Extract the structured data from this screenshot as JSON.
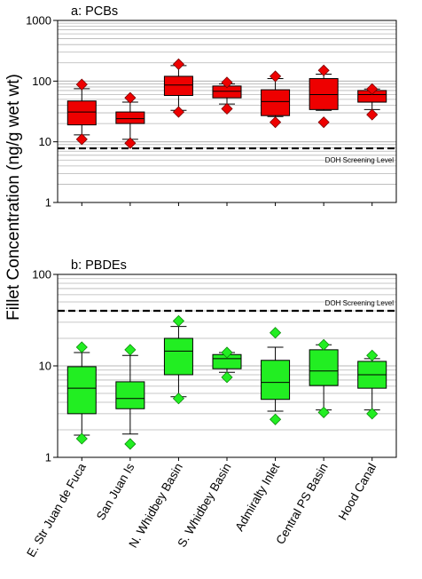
{
  "ylabel": "Fillet Concentration (ng/g wet wt)",
  "categories": [
    "E. Str Juan de Fuca",
    "San Juan Is",
    "N. Whidbey Basin",
    "S. Whidbey Basin",
    "Admiralty Inlet",
    "Central PS Basin",
    "Hood Canal"
  ],
  "chart_data": [
    {
      "type": "box",
      "title": "a: PCBs",
      "yscale": "log",
      "ylim": [
        1,
        1000
      ],
      "yticks": [
        "1",
        "10",
        "100",
        "1000"
      ],
      "color": "#ee0000",
      "reference_line": {
        "label": "DOH Screening Level",
        "value": 7.8
      },
      "boxes": [
        {
          "category": "E. Str Juan de Fuca",
          "min": 11,
          "whisker_low": 13,
          "q1": 19,
          "median": 31,
          "q3": 47,
          "whisker_high": 75,
          "max": 88
        },
        {
          "category": "San Juan Is",
          "min": 9.5,
          "whisker_low": 11,
          "q1": 20,
          "median": 24,
          "q3": 31,
          "whisker_high": 45,
          "max": 53
        },
        {
          "category": "N. Whidbey Basin",
          "min": 31,
          "whisker_low": 33,
          "q1": 58,
          "median": 86,
          "q3": 120,
          "whisker_high": 180,
          "max": 190
        },
        {
          "category": "S. Whidbey Basin",
          "min": 35,
          "whisker_low": 42,
          "q1": 53,
          "median": 68,
          "q3": 83,
          "whisker_high": 90,
          "max": 95
        },
        {
          "category": "Admiralty Inlet",
          "min": 21,
          "whisker_low": 26,
          "q1": 27,
          "median": 46,
          "q3": 72,
          "whisker_high": 110,
          "max": 120
        },
        {
          "category": "Central PS Basin",
          "min": 21,
          "whisker_low": 33,
          "q1": 34,
          "median": 60,
          "q3": 110,
          "whisker_high": 130,
          "max": 150
        },
        {
          "category": "Hood Canal",
          "min": 28,
          "whisker_low": 34,
          "q1": 45,
          "median": 60,
          "q3": 70,
          "whisker_high": 74,
          "max": 74
        }
      ]
    },
    {
      "type": "box",
      "title": "b: PBDEs",
      "yscale": "log",
      "ylim": [
        1,
        100
      ],
      "yticks": [
        "1",
        "10",
        "100"
      ],
      "color": "#22ee22",
      "reference_line": {
        "label": "DOH Screening Level",
        "value": 40
      },
      "boxes": [
        {
          "category": "E. Str Juan de Fuca",
          "min": 1.6,
          "whisker_low": 1.75,
          "q1": 3,
          "median": 5.7,
          "q3": 9.8,
          "whisker_high": 14,
          "max": 16
        },
        {
          "category": "San Juan Is",
          "min": 1.4,
          "whisker_low": 1.8,
          "q1": 3.4,
          "median": 4.4,
          "q3": 6.7,
          "whisker_high": 13,
          "max": 15
        },
        {
          "category": "N. Whidbey Basin",
          "min": 4.4,
          "whisker_low": 4.6,
          "q1": 8,
          "median": 14.5,
          "q3": 20,
          "whisker_high": 27,
          "max": 31
        },
        {
          "category": "S. Whidbey Basin",
          "min": 7.5,
          "whisker_low": 8.5,
          "q1": 9.3,
          "median": 12,
          "q3": 13.3,
          "whisker_high": 14,
          "max": 14
        },
        {
          "category": "Admiralty Inlet",
          "min": 2.6,
          "whisker_low": 3.2,
          "q1": 4.3,
          "median": 6.6,
          "q3": 11.5,
          "whisker_high": 16,
          "max": 23
        },
        {
          "category": "Central PS Basin",
          "min": 3.1,
          "whisker_low": 3.3,
          "q1": 6.1,
          "median": 8.8,
          "q3": 15,
          "whisker_high": 17,
          "max": 17
        },
        {
          "category": "Hood Canal",
          "min": 3,
          "whisker_low": 3.3,
          "q1": 5.7,
          "median": 8,
          "q3": 11.2,
          "whisker_high": 12,
          "max": 13
        }
      ]
    }
  ]
}
